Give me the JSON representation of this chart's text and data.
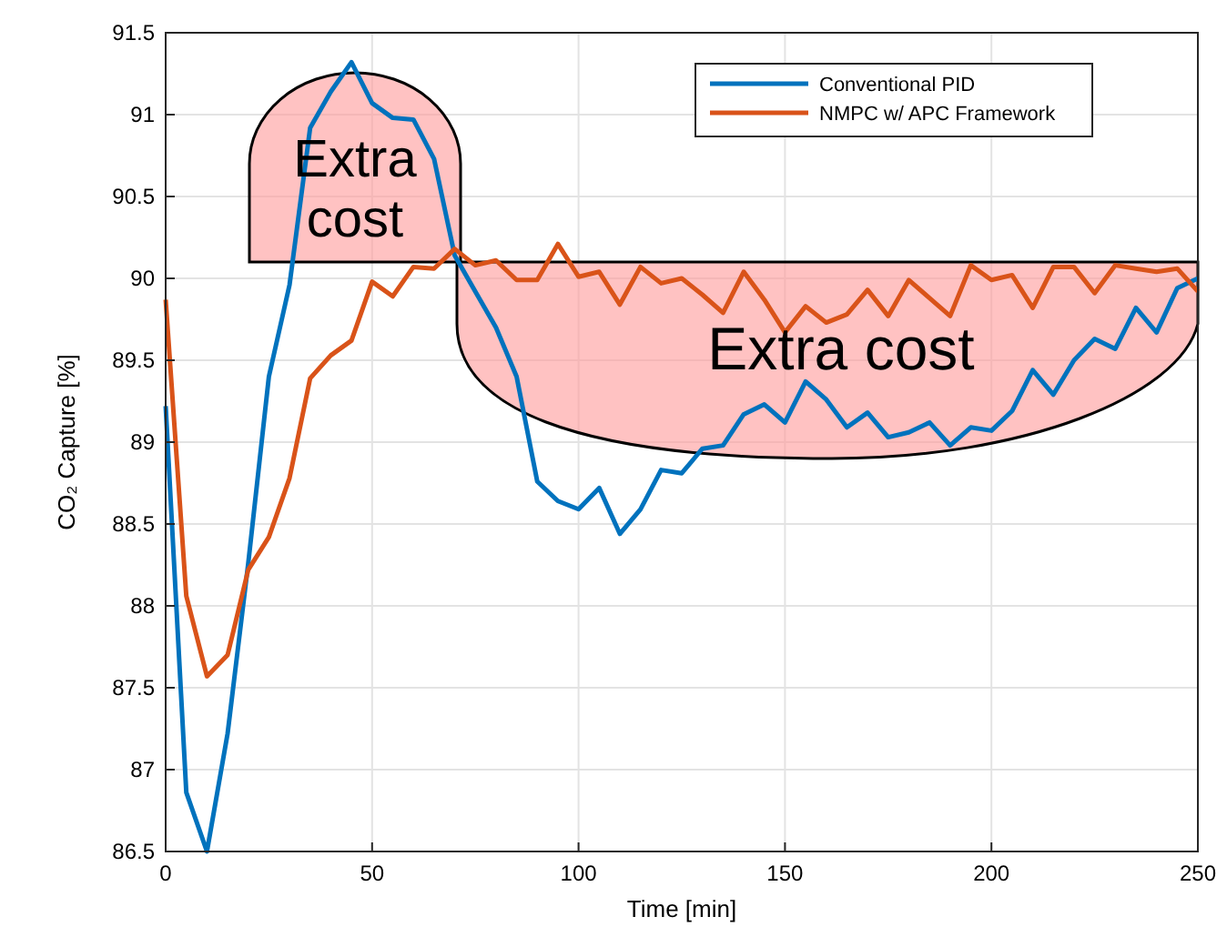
{
  "chart_data": {
    "type": "line",
    "xlabel": "Time [min]",
    "ylabel": "CO₂ Capture [%]",
    "x": [
      0,
      5,
      10,
      15,
      20,
      25,
      30,
      35,
      40,
      45,
      50,
      55,
      60,
      65,
      70,
      75,
      80,
      85,
      90,
      95,
      100,
      105,
      110,
      115,
      120,
      125,
      130,
      135,
      140,
      145,
      150,
      155,
      160,
      165,
      170,
      175,
      180,
      185,
      190,
      195,
      200,
      205,
      210,
      215,
      220,
      225,
      230,
      235,
      240,
      245,
      250
    ],
    "series": [
      {
        "name": "Conventional PID",
        "color": "#0072bd",
        "values": [
          89.22,
          86.86,
          86.5,
          87.22,
          88.26,
          89.4,
          89.96,
          90.92,
          91.14,
          91.32,
          91.07,
          90.98,
          90.97,
          90.73,
          90.14,
          89.92,
          89.7,
          89.4,
          88.76,
          88.64,
          88.59,
          88.72,
          88.44,
          88.59,
          88.83,
          88.81,
          88.96,
          88.98,
          89.17,
          89.23,
          89.12,
          89.37,
          89.26,
          89.09,
          89.18,
          89.03,
          89.06,
          89.12,
          88.98,
          89.09,
          89.07,
          89.19,
          89.44,
          89.29,
          89.5,
          89.63,
          89.57,
          89.82,
          89.67,
          89.94,
          90.0
        ]
      },
      {
        "name": "NMPC w/ APC Framework",
        "color": "#d95319",
        "values": [
          89.87,
          88.06,
          87.57,
          87.7,
          88.22,
          88.42,
          88.78,
          89.39,
          89.53,
          89.62,
          89.98,
          89.89,
          90.07,
          90.06,
          90.18,
          90.08,
          90.11,
          89.99,
          89.99,
          90.21,
          90.01,
          90.04,
          89.84,
          90.07,
          89.97,
          90.0,
          89.9,
          89.79,
          90.04,
          89.87,
          89.67,
          89.83,
          89.73,
          89.78,
          89.93,
          89.77,
          89.99,
          89.88,
          89.77,
          90.08,
          89.99,
          90.02,
          89.82,
          90.07,
          90.07,
          89.91,
          90.08,
          90.06,
          90.04,
          90.06,
          89.92
        ]
      }
    ],
    "xlim": [
      0,
      250
    ],
    "xticks": [
      0,
      50,
      100,
      150,
      200,
      250
    ],
    "ylim": [
      86.5,
      91.5
    ],
    "yticks": [
      86.5,
      87,
      87.5,
      88,
      88.5,
      89,
      89.5,
      90,
      90.5,
      91,
      91.5
    ],
    "grid": true,
    "legend": "top right",
    "line_style": "solid",
    "annotations": [
      "Extra cost",
      "Extra cost"
    ]
  }
}
